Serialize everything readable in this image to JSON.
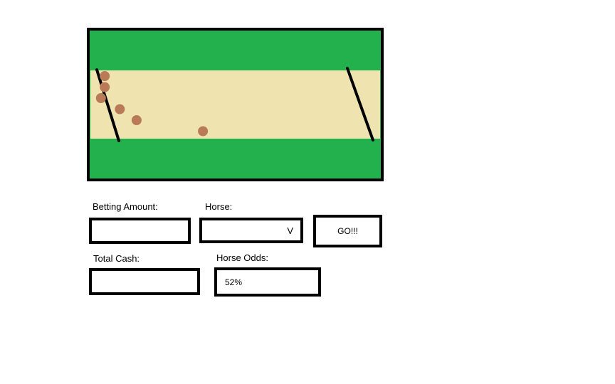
{
  "colors": {
    "grass": "#22b14c",
    "dirt": "#efe4b0",
    "horse": "#b97a57",
    "outline": "#000000"
  },
  "race": {
    "horses": [
      {
        "lane": 1,
        "progress": 0.047
      },
      {
        "lane": 2,
        "progress": 0.047
      },
      {
        "lane": 3,
        "progress": 0.034
      },
      {
        "lane": 4,
        "progress": 0.099
      },
      {
        "lane": 5,
        "progress": 0.157
      },
      {
        "lane": 6,
        "progress": 0.386
      }
    ]
  },
  "form": {
    "betting_amount_label": "Betting Amount:",
    "betting_amount_value": "",
    "horse_label": "Horse:",
    "horse_selected": "",
    "horse_arrow": "V",
    "go_label": "GO!!!",
    "total_cash_label": "Total Cash:",
    "total_cash_value": "",
    "horse_odds_label": "Horse Odds:",
    "horse_odds_value": "52%"
  }
}
